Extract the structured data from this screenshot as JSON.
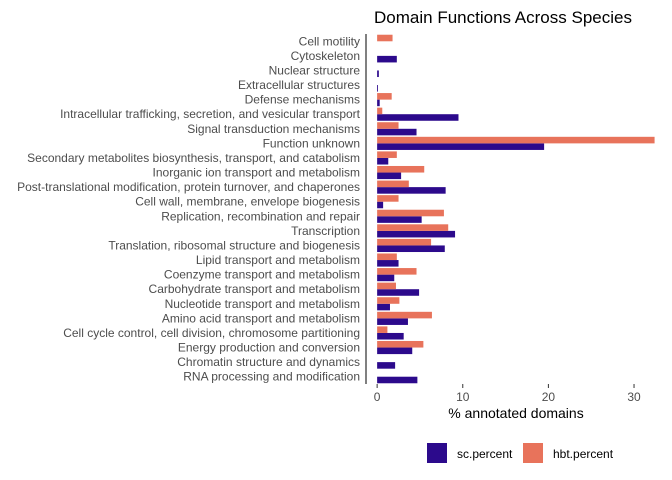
{
  "chart_data": {
    "type": "bar",
    "orientation": "horizontal",
    "title": "Domain Functions Across Species",
    "xlabel": "% annotated domains",
    "ylabel": "",
    "xlim": [
      -1.3,
      33.5
    ],
    "xticks": [
      0,
      10,
      20,
      30
    ],
    "grid": false,
    "legend_position": "bottom",
    "categories": [
      "Cell motility",
      "Cytoskeleton",
      "Nuclear structure",
      "Extracellular structures",
      "Defense mechanisms",
      "Intracellular trafficking, secretion, and vesicular transport",
      "Signal transduction mechanisms",
      "Function unknown",
      "Secondary metabolites biosynthesis, transport, and catabolism",
      "Inorganic ion transport and metabolism",
      "Post-translational modification, protein turnover, and chaperones",
      "Cell wall, membrane, envelope biogenesis",
      "Replication, recombination and repair",
      "Transcription",
      "Translation, ribosomal structure and biogenesis",
      "Lipid transport and metabolism",
      "Coenzyme transport and metabolism",
      "Carbohydrate transport and metabolism",
      "Nucleotide transport and metabolism",
      "Amino acid transport and metabolism",
      "Cell cycle control, cell division, chromosome partitioning",
      "Energy production and conversion",
      "Chromatin structure and dynamics",
      "RNA processing and modification"
    ],
    "series": [
      {
        "name": "sc.percent",
        "color": "#2c0a8c",
        "values": [
          0,
          2.3,
          0.2,
          0.1,
          0.3,
          9.5,
          4.6,
          19.5,
          1.3,
          2.8,
          8.0,
          0.7,
          5.2,
          9.1,
          7.9,
          2.5,
          2.0,
          4.9,
          1.5,
          3.6,
          3.1,
          4.1,
          2.1,
          4.7
        ]
      },
      {
        "name": "hbt.percent",
        "color": "#e8735b",
        "values": [
          1.8,
          0,
          0,
          0,
          1.7,
          0.6,
          2.5,
          32.4,
          2.3,
          5.5,
          3.7,
          2.5,
          7.8,
          8.3,
          6.3,
          2.3,
          4.6,
          2.2,
          2.6,
          6.4,
          1.2,
          5.4,
          0,
          0
        ]
      }
    ]
  }
}
